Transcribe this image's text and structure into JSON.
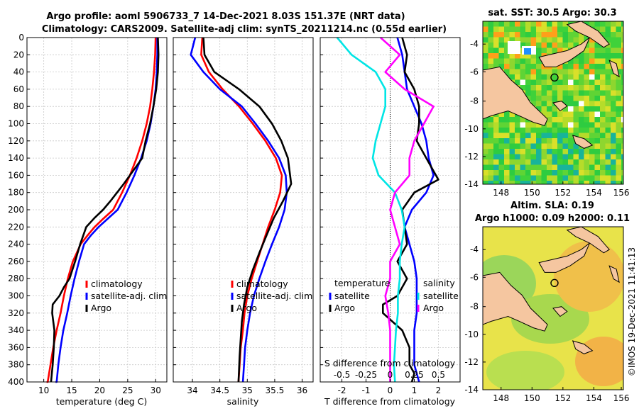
{
  "header": {
    "line1": "Argo profile: aoml 5906733_7 14-Dec-2021 8.03S 151.37E (NRT data)",
    "line2": "Climatology: CARS2009. Satellite-adj clim: synTS_20211214.nc (0.55d earlier)"
  },
  "colors": {
    "climatology": "#ff0000",
    "satellite": "#0000ff",
    "argo": "#000000",
    "sat_salinity": "#00e5e5",
    "argo_salinity": "#ff00ff",
    "land": "#f5c6a0"
  },
  "chart_data": [
    {
      "type": "line",
      "name": "temperature",
      "xlabel": "temperature (deg C)",
      "xlim": [
        7,
        32
      ],
      "xticks": [
        10,
        15,
        20,
        25,
        30
      ],
      "ylim": [
        0,
        400
      ],
      "yticks": [
        0,
        20,
        40,
        60,
        80,
        100,
        120,
        140,
        160,
        180,
        200,
        220,
        240,
        260,
        280,
        300,
        320,
        340,
        360,
        380,
        400
      ],
      "legend": [
        "climatology",
        "satellite-adj. clim",
        "Argo"
      ],
      "series": [
        {
          "name": "climatology",
          "color": "#ff0000",
          "x": [
            30.0,
            29.9,
            29.7,
            29.4,
            29.0,
            28.4,
            27.6,
            26.6,
            25.4,
            24.0,
            22.4,
            20.7,
            19.1,
            17.8,
            16.6,
            15.2,
            14.3,
            13.6,
            13.0,
            12.3,
            11.7,
            11.2,
            10.7,
            10.5
          ],
          "y": [
            0,
            20,
            40,
            60,
            80,
            100,
            120,
            140,
            160,
            180,
            200,
            210,
            220,
            230,
            240,
            260,
            280,
            300,
            320,
            340,
            360,
            380,
            400,
            400
          ]
        },
        {
          "name": "satellite",
          "color": "#0000ff",
          "x": [
            30.3,
            30.3,
            30.2,
            30.0,
            29.6,
            29.1,
            28.4,
            27.4,
            26.2,
            24.8,
            23.2,
            21.5,
            19.8,
            18.4,
            17.2,
            16.3,
            15.5,
            14.8,
            14.2,
            13.5,
            13.0,
            12.6,
            12.3,
            12.1
          ],
          "y": [
            0,
            20,
            40,
            60,
            80,
            100,
            120,
            140,
            160,
            180,
            200,
            210,
            220,
            230,
            240,
            260,
            280,
            300,
            320,
            340,
            360,
            380,
            400,
            400
          ]
        },
        {
          "name": "Argo",
          "color": "#000000",
          "x": [
            30.4,
            30.5,
            30.4,
            30.1,
            29.6,
            29.0,
            28.2,
            27.6,
            26.5,
            25.4,
            24.3,
            23.1,
            21.9,
            20.6,
            19.0,
            17.6,
            16.5,
            15.6,
            14.6,
            13.6,
            12.8,
            11.6,
            11.5,
            11.9,
            11.8,
            11.6,
            11.3
          ],
          "y": [
            0,
            20,
            40,
            60,
            80,
            100,
            120,
            140,
            150,
            160,
            170,
            180,
            190,
            200,
            210,
            220,
            240,
            260,
            280,
            290,
            300,
            310,
            320,
            340,
            360,
            380,
            400
          ]
        }
      ]
    },
    {
      "type": "line",
      "name": "salinity",
      "xlabel": "salinity",
      "xlim": [
        33.65,
        36.2
      ],
      "xticks": [
        34,
        34.5,
        35,
        35.5,
        36
      ],
      "xticklabels": [
        "34",
        "34.5",
        "35",
        "35.5",
        "36"
      ],
      "ylim": [
        0,
        400
      ],
      "legend": [
        "climatology",
        "satellite-adj. clim",
        "Argo"
      ],
      "series": [
        {
          "name": "climatology",
          "color": "#ff0000",
          "x": [
            34.18,
            34.16,
            34.3,
            34.55,
            34.85,
            35.1,
            35.33,
            35.52,
            35.63,
            35.6,
            35.5,
            35.38,
            35.28,
            35.18,
            35.08,
            35.0,
            34.95,
            34.92,
            34.88,
            34.86,
            34.84
          ],
          "y": [
            0,
            20,
            40,
            60,
            80,
            100,
            120,
            140,
            160,
            180,
            200,
            220,
            240,
            260,
            280,
            300,
            320,
            340,
            360,
            380,
            400
          ]
        },
        {
          "name": "satellite",
          "color": "#0000ff",
          "x": [
            34.05,
            33.97,
            34.2,
            34.5,
            34.9,
            35.15,
            35.38,
            35.58,
            35.7,
            35.72,
            35.68,
            35.58,
            35.45,
            35.33,
            35.22,
            35.12,
            35.05,
            35.0,
            34.96,
            34.94,
            34.92
          ],
          "y": [
            0,
            20,
            40,
            60,
            80,
            100,
            120,
            140,
            160,
            180,
            200,
            220,
            240,
            260,
            280,
            300,
            320,
            340,
            360,
            380,
            400
          ]
        },
        {
          "name": "Argo",
          "color": "#000000",
          "x": [
            34.2,
            34.22,
            34.4,
            34.85,
            35.22,
            35.45,
            35.62,
            35.74,
            35.78,
            35.8,
            35.65,
            35.48,
            35.35,
            35.22,
            35.1,
            35.0,
            34.94,
            34.9,
            34.88,
            34.86,
            34.84
          ],
          "y": [
            0,
            20,
            40,
            60,
            80,
            100,
            120,
            140,
            160,
            170,
            190,
            210,
            230,
            250,
            270,
            290,
            310,
            330,
            350,
            370,
            400
          ]
        }
      ]
    },
    {
      "type": "line",
      "name": "differences",
      "xlabel": "T difference from climatology",
      "xlabel_top": "S difference from climatology",
      "xlim": [
        -2.9,
        2.9
      ],
      "xticks": [
        -2,
        -1,
        0,
        1,
        2
      ],
      "s_ticks": [
        "-0.5",
        "-0.25",
        "0",
        "0.25",
        "0.5"
      ],
      "ylim": [
        0,
        400
      ],
      "legend_t": {
        "title": "temperature",
        "items": [
          "satellite",
          "Argo"
        ]
      },
      "legend_s": {
        "title": "salinity",
        "items": [
          "satellite",
          "Argo"
        ]
      },
      "series": [
        {
          "name": "T satellite",
          "color": "#0000ff",
          "x": [
            0.3,
            0.5,
            0.6,
            0.7,
            1.0,
            1.3,
            1.5,
            1.6,
            1.8,
            1.5,
            0.9,
            0.6,
            0.8,
            1.0,
            1.1,
            1.1,
            1.1,
            1.0,
            1.0,
            1.0,
            1.0,
            1.1,
            1.2
          ],
          "y": [
            0,
            20,
            40,
            60,
            80,
            100,
            120,
            140,
            160,
            180,
            200,
            220,
            240,
            260,
            280,
            300,
            320,
            340,
            360,
            370,
            380,
            390,
            400
          ]
        },
        {
          "name": "T Argo",
          "color": "#000000",
          "x": [
            0.5,
            0.7,
            0.6,
            1.0,
            1.2,
            1.2,
            1.1,
            1.5,
            2.0,
            1.0,
            0.5,
            0.6,
            0.7,
            0.3,
            0.7,
            0.3,
            -0.3,
            -0.3,
            0.5,
            0.8,
            0.8,
            1.0,
            0.9
          ],
          "y": [
            0,
            20,
            40,
            60,
            80,
            100,
            120,
            140,
            165,
            180,
            200,
            220,
            240,
            260,
            280,
            300,
            310,
            320,
            340,
            360,
            380,
            390,
            400
          ]
        },
        {
          "name": "S satellite",
          "color": "#00e5e5",
          "x": [
            -0.55,
            -0.4,
            -0.15,
            -0.05,
            -0.05,
            -0.1,
            -0.15,
            -0.18,
            -0.12,
            0.05,
            0.12,
            0.15,
            0.12,
            0.1,
            0.1,
            0.08,
            0.08,
            0.06,
            0.05,
            0.04,
            0.05
          ],
          "y": [
            0,
            20,
            40,
            60,
            80,
            100,
            120,
            140,
            160,
            180,
            200,
            220,
            240,
            260,
            280,
            300,
            320,
            340,
            360,
            380,
            400
          ]
        },
        {
          "name": "S Argo",
          "color": "#ff00ff",
          "x": [
            -0.1,
            0.1,
            -0.05,
            0.15,
            0.45,
            0.35,
            0.25,
            0.2,
            0.2,
            0.05,
            0.0,
            0.05,
            0.1,
            0.0,
            0.0,
            -0.05,
            -0.02,
            0.0,
            0.0,
            0.0,
            0.0
          ],
          "y": [
            0,
            20,
            40,
            60,
            80,
            100,
            120,
            140,
            160,
            180,
            200,
            220,
            240,
            260,
            280,
            300,
            320,
            340,
            360,
            380,
            400
          ]
        }
      ]
    }
  ],
  "maps": {
    "top_title": "sat. SST: 30.5 Argo: 30.3",
    "bottom_title1": "Altim. SLA: 0.19",
    "bottom_title2": "Argo h1000: 0.09 h2000: 0.11",
    "xticks": [
      "148",
      "150",
      "152",
      "154",
      "156"
    ],
    "yticks": [
      "-4",
      "-6",
      "-8",
      "-10",
      "-12",
      "-14"
    ],
    "watermark": "©IMOS 19-Dec-2021 11:41:13"
  }
}
